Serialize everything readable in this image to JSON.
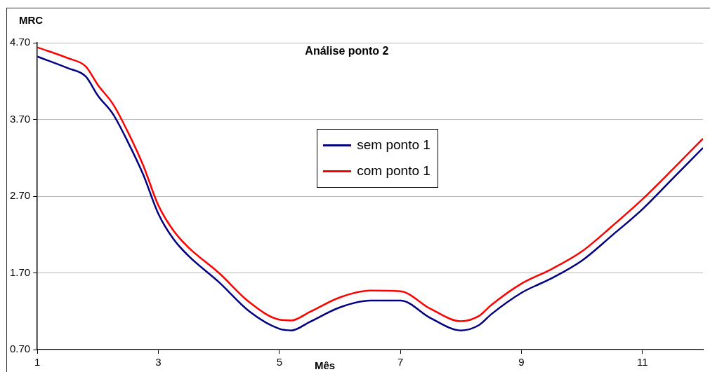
{
  "chart_data": {
    "type": "line",
    "title": "Análise ponto 2",
    "xlabel": "Mês",
    "ylabel": "MRC",
    "x": [
      1,
      1.5,
      1.8,
      2,
      2.25,
      2.5,
      2.75,
      3,
      3.25,
      3.5,
      4,
      4.5,
      5,
      5.2,
      5.5,
      6,
      6.5,
      7,
      7.5,
      8,
      8.3,
      8.5,
      9,
      9.5,
      10,
      10.5,
      11,
      11.5,
      12
    ],
    "series": [
      {
        "name": "sem ponto 1",
        "color": "#000080",
        "values": [
          4.52,
          4.37,
          4.26,
          4.01,
          3.77,
          3.4,
          2.98,
          2.47,
          2.14,
          1.92,
          1.58,
          1.2,
          0.97,
          0.95,
          1.06,
          1.25,
          1.34,
          1.34,
          1.11,
          0.95,
          1.02,
          1.16,
          1.44,
          1.63,
          1.86,
          2.19,
          2.53,
          2.93,
          3.33
        ]
      },
      {
        "name": "com ponto 1",
        "color": "#ff0000",
        "values": [
          4.64,
          4.5,
          4.39,
          4.15,
          3.9,
          3.53,
          3.1,
          2.58,
          2.25,
          2.03,
          1.7,
          1.32,
          1.09,
          1.08,
          1.19,
          1.38,
          1.47,
          1.46,
          1.23,
          1.07,
          1.14,
          1.28,
          1.56,
          1.75,
          1.98,
          2.31,
          2.66,
          3.05,
          3.45
        ]
      }
    ],
    "xlim": [
      1,
      12
    ],
    "xticks": [
      1,
      3,
      5,
      7,
      9,
      11
    ],
    "ylim": [
      0.7,
      4.7
    ],
    "yticks": [
      {
        "value": 0.7,
        "label": "0.70"
      },
      {
        "value": 1.7,
        "label": "1.70"
      },
      {
        "value": 2.7,
        "label": "2.70"
      },
      {
        "value": 3.7,
        "label": "3.70"
      },
      {
        "value": 4.7,
        "label": "4.70"
      }
    ],
    "grid": "y",
    "legend": "top",
    "marker": "none",
    "line_style": "solid"
  }
}
